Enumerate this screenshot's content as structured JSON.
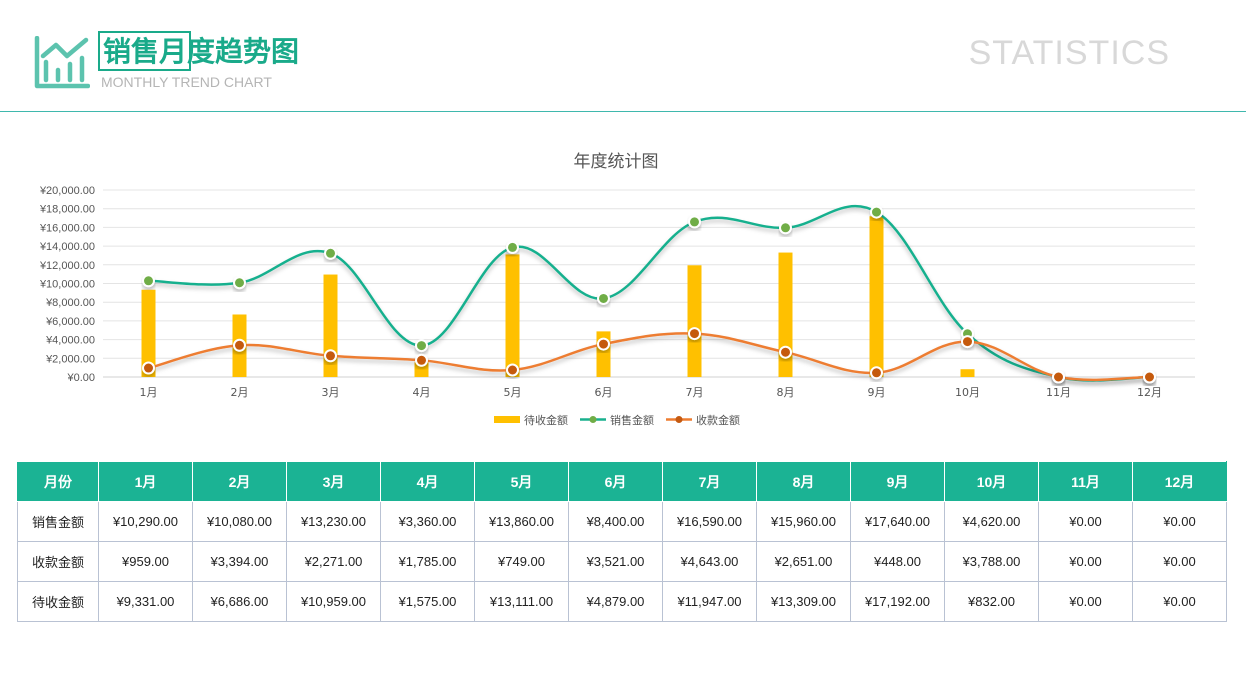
{
  "header": {
    "title": "销售月度趋势图",
    "subtitle": "MONTHLY TREND CHART",
    "right_label": "STATISTICS",
    "accent_color": "#1aaa8a",
    "logo_icon": "bar-chart-trend-icon"
  },
  "chart_data": {
    "type": "bar+line",
    "title": "年度统计图",
    "categories": [
      "1月",
      "2月",
      "3月",
      "4月",
      "5月",
      "6月",
      "7月",
      "8月",
      "9月",
      "10月",
      "11月",
      "12月"
    ],
    "ylim": [
      0,
      20000
    ],
    "y_ticks": [
      "¥0.00",
      "¥2,000.00",
      "¥4,000.00",
      "¥6,000.00",
      "¥8,000.00",
      "¥10,000.00",
      "¥12,000.00",
      "¥14,000.00",
      "¥16,000.00",
      "¥18,000.00",
      "¥20,000.00"
    ],
    "grid": true,
    "legend_position": "bottom",
    "series": [
      {
        "name": "待收金额",
        "kind": "bar",
        "color": "#ffc000",
        "values": [
          9331,
          6686,
          10959,
          1575,
          13111,
          4879,
          11947,
          13309,
          17192,
          832,
          0,
          0
        ]
      },
      {
        "name": "销售金额",
        "kind": "line",
        "color": "#19b08e",
        "marker_color": "#70ad47",
        "values": [
          10290,
          10080,
          13230,
          3360,
          13860,
          8400,
          16590,
          15960,
          17640,
          4620,
          0,
          0
        ]
      },
      {
        "name": "收款金额",
        "kind": "line",
        "color": "#ed7d31",
        "marker_color": "#c55a11",
        "values": [
          959,
          3394,
          2271,
          1785,
          749,
          3521,
          4643,
          2651,
          448,
          3788,
          0,
          0
        ]
      }
    ]
  },
  "table": {
    "header": [
      "月份",
      "1月",
      "2月",
      "3月",
      "4月",
      "5月",
      "6月",
      "7月",
      "8月",
      "9月",
      "10月",
      "11月",
      "12月"
    ],
    "rows": [
      [
        "销售金额",
        "¥10,290.00",
        "¥10,080.00",
        "¥13,230.00",
        "¥3,360.00",
        "¥13,860.00",
        "¥8,400.00",
        "¥16,590.00",
        "¥15,960.00",
        "¥17,640.00",
        "¥4,620.00",
        "¥0.00",
        "¥0.00"
      ],
      [
        "收款金额",
        "¥959.00",
        "¥3,394.00",
        "¥2,271.00",
        "¥1,785.00",
        "¥749.00",
        "¥3,521.00",
        "¥4,643.00",
        "¥2,651.00",
        "¥448.00",
        "¥3,788.00",
        "¥0.00",
        "¥0.00"
      ],
      [
        "待收金额",
        "¥9,331.00",
        "¥6,686.00",
        "¥10,959.00",
        "¥1,575.00",
        "¥13,111.00",
        "¥4,879.00",
        "¥11,947.00",
        "¥13,309.00",
        "¥17,192.00",
        "¥832.00",
        "¥0.00",
        "¥0.00"
      ]
    ]
  }
}
